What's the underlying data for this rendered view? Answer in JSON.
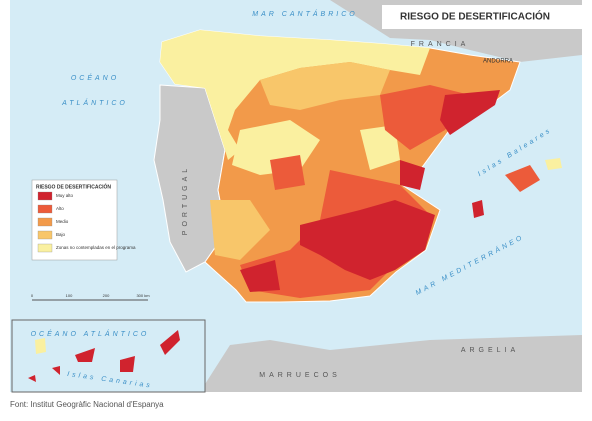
{
  "map": {
    "title": "RIESGO DE DESERTIFICACIÓN",
    "places": {
      "mar_cantabrico": "MAR CANTÁBRICO",
      "francia": "FRANCIA",
      "andorra": "ANDORRA",
      "oceano": "OCÉANO",
      "atlantico": "ATLÁNTICO",
      "portugal": "PORTUGAL",
      "baleares": "Islas Baleares",
      "mar_mediterraneo": "MAR MEDITERRÁNEO",
      "argelia": "ARGELIA",
      "marruecos": "MARRUECOS",
      "inset_oceano": "OCÉANO ATLÁNTICO",
      "canarias": "Islas Canarias"
    },
    "legend": {
      "title": "RIESGO DE DESERTIFICACIÓN",
      "items": [
        {
          "label": "Muy alto",
          "color": "#d0232e"
        },
        {
          "label": "Alto",
          "color": "#ec5b3a"
        },
        {
          "label": "Medio",
          "color": "#f29a4a"
        },
        {
          "label": "Bajo",
          "color": "#f8c66a"
        },
        {
          "label": "Zonas no contempladas en el programa",
          "color": "#faf0a0"
        }
      ]
    },
    "scale": [
      "0",
      "100",
      "200",
      "300 km"
    ],
    "caption": "Font: Institut Geogràfic Nacional d'Espanya"
  }
}
